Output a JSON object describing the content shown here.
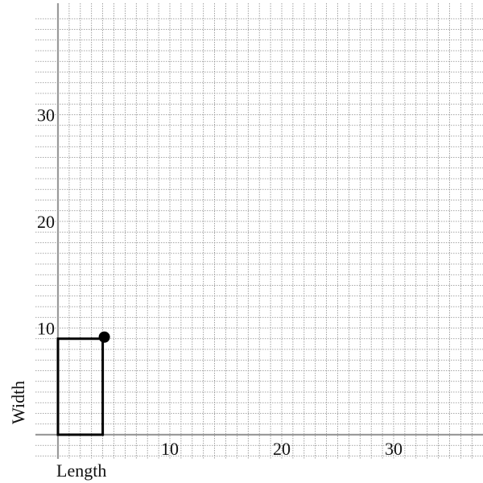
{
  "chart_data": {
    "type": "scatter",
    "xlabel": "Length",
    "ylabel": "Width",
    "xlim": [
      0,
      38
    ],
    "ylim": [
      0,
      39
    ],
    "grid": true,
    "grid_step": 1,
    "x_ticks": [
      10,
      20,
      30
    ],
    "y_ticks": [
      10,
      20,
      30
    ],
    "rectangle": {
      "length": 4,
      "width": 9
    },
    "handle_point": {
      "x": 4,
      "y": 9
    }
  },
  "colors": {
    "grid": "#8a8a8a",
    "axis": "#9a9a9a",
    "shape": "#000000",
    "text": "#111111"
  }
}
